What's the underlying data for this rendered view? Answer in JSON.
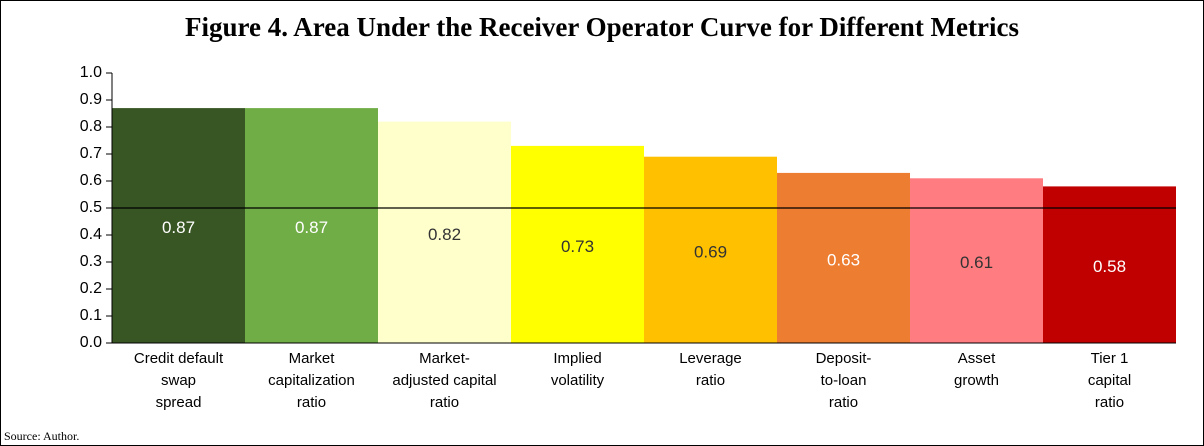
{
  "chart_data": {
    "type": "bar",
    "title": "Figure 4. Area Under the Receiver Operator Curve for Different Metrics",
    "categories": [
      "Credit default\nswap\nspread",
      "Market\ncapitalization\nratio",
      "Market-\nadjusted capital\nratio",
      "Implied\nvolatility",
      "Leverage\nratio",
      "Deposit-\nto-loan\nratio",
      "Asset\ngrowth",
      "Tier 1\ncapital\nratio"
    ],
    "values": [
      0.87,
      0.87,
      0.82,
      0.73,
      0.69,
      0.63,
      0.61,
      0.58
    ],
    "colors": [
      "#375623",
      "#70ad47",
      "#ffffcc",
      "#ffff00",
      "#ffc000",
      "#ed7d31",
      "#ff7c80",
      "#c00000"
    ],
    "ylim": [
      0,
      1
    ],
    "yticks": [
      {
        "value": 0,
        "label": "0.0"
      },
      0.1,
      0.2,
      0.3,
      0.4,
      0.5,
      0.6,
      0.7,
      0.8,
      0.9,
      {
        "value": 1,
        "label": "1.0"
      }
    ],
    "reference_line": 0.5,
    "source": "Source: Author."
  }
}
